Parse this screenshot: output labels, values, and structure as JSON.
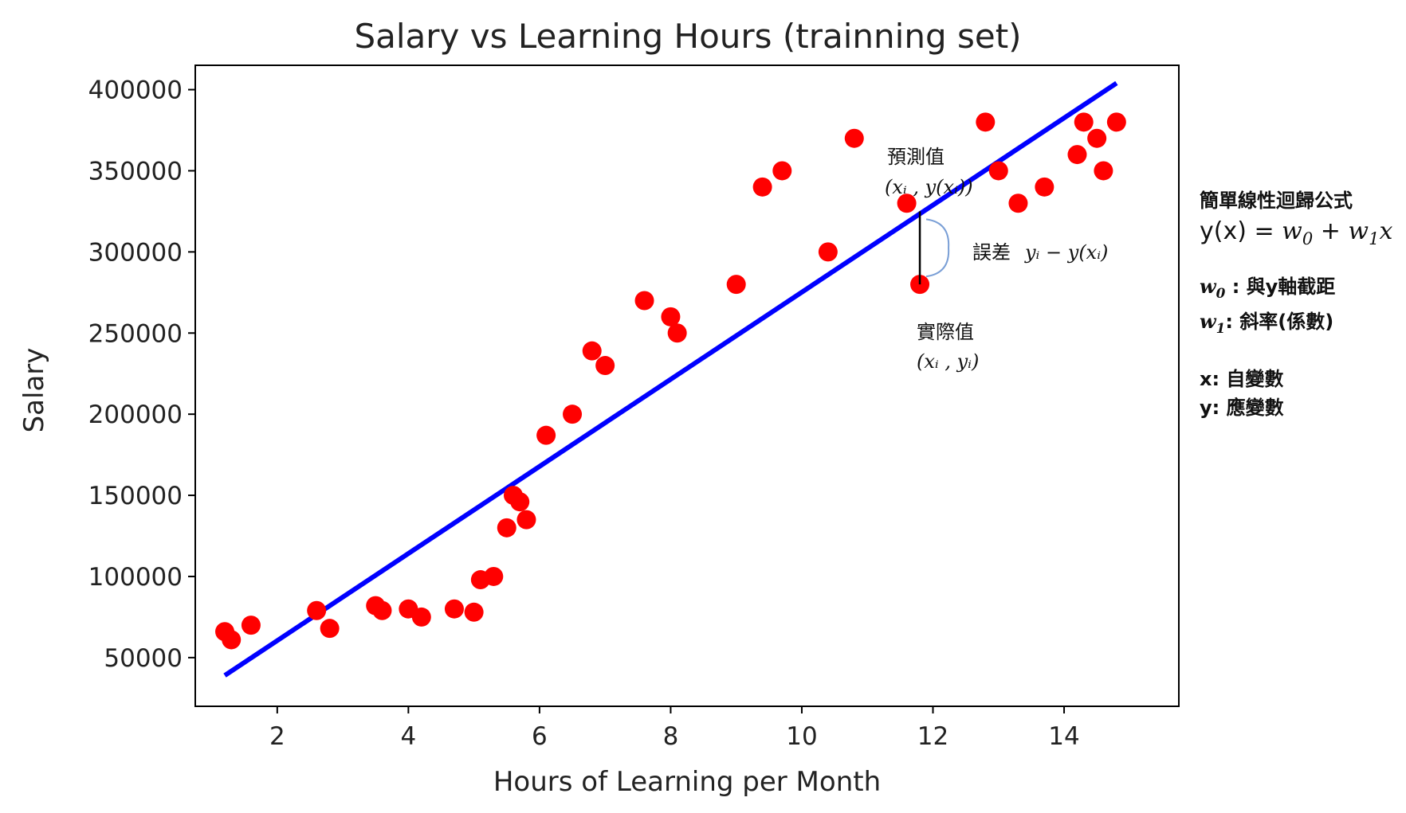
{
  "chart_data": {
    "type": "scatter",
    "title": "Salary vs Learning Hours (trainning set)",
    "xlabel": "Hours of Learning per Month",
    "ylabel": "Salary",
    "xlim": [
      0.75,
      15.75
    ],
    "ylim": [
      20000,
      415000
    ],
    "xticks": [
      2,
      4,
      6,
      8,
      10,
      12,
      14
    ],
    "yticks": [
      50000,
      100000,
      150000,
      200000,
      250000,
      300000,
      350000,
      400000
    ],
    "grid": false,
    "points": [
      {
        "x": 1.2,
        "y": 66000
      },
      {
        "x": 1.3,
        "y": 61000
      },
      {
        "x": 1.6,
        "y": 70000
      },
      {
        "x": 2.6,
        "y": 79000
      },
      {
        "x": 2.8,
        "y": 68000
      },
      {
        "x": 3.5,
        "y": 82000
      },
      {
        "x": 3.6,
        "y": 79000
      },
      {
        "x": 4.0,
        "y": 80000
      },
      {
        "x": 4.2,
        "y": 75000
      },
      {
        "x": 4.7,
        "y": 80000
      },
      {
        "x": 5.0,
        "y": 78000
      },
      {
        "x": 5.1,
        "y": 98000
      },
      {
        "x": 5.3,
        "y": 100000
      },
      {
        "x": 5.5,
        "y": 130000
      },
      {
        "x": 5.6,
        "y": 150000
      },
      {
        "x": 5.7,
        "y": 146000
      },
      {
        "x": 5.8,
        "y": 135000
      },
      {
        "x": 6.1,
        "y": 187000
      },
      {
        "x": 6.5,
        "y": 200000
      },
      {
        "x": 6.8,
        "y": 239000
      },
      {
        "x": 7.0,
        "y": 230000
      },
      {
        "x": 7.6,
        "y": 270000
      },
      {
        "x": 8.0,
        "y": 260000
      },
      {
        "x": 8.1,
        "y": 250000
      },
      {
        "x": 9.0,
        "y": 280000
      },
      {
        "x": 9.4,
        "y": 340000
      },
      {
        "x": 9.7,
        "y": 350000
      },
      {
        "x": 10.4,
        "y": 300000
      },
      {
        "x": 10.8,
        "y": 370000
      },
      {
        "x": 11.6,
        "y": 330000
      },
      {
        "x": 11.8,
        "y": 280000
      },
      {
        "x": 12.8,
        "y": 380000
      },
      {
        "x": 13.0,
        "y": 350000
      },
      {
        "x": 13.3,
        "y": 330000
      },
      {
        "x": 13.7,
        "y": 340000
      },
      {
        "x": 14.2,
        "y": 360000
      },
      {
        "x": 14.3,
        "y": 380000
      },
      {
        "x": 14.5,
        "y": 370000
      },
      {
        "x": 14.6,
        "y": 350000
      },
      {
        "x": 14.8,
        "y": 380000
      }
    ],
    "regression_line": {
      "x": [
        1.2,
        14.8
      ],
      "y": [
        39000,
        404000
      ]
    },
    "colors": {
      "points": "#ff0000",
      "line": "#0000ff",
      "error_bar": "#000000",
      "brace": "#7a9fd6"
    },
    "annotations": {
      "predicted_label": "預測值",
      "predicted_coord": "(𝑥ᵢ , y(𝑥ᵢ))",
      "actual_label": "實際值",
      "actual_coord": "(𝑥ᵢ , 𝑦ᵢ)",
      "error_label": "誤差",
      "error_expr": "𝑦ᵢ − y(𝑥ᵢ)",
      "error_x": 11.8,
      "error_y_top": 325000,
      "error_y_bottom": 280000
    }
  },
  "side_panel": {
    "title": "簡單線性迴歸公式",
    "equation_prefix": "y(x) = ",
    "equation_w0": "w",
    "equation_w0_sub": "0",
    "equation_plus": " + ",
    "equation_w1": "w",
    "equation_w1_sub": "1",
    "equation_x": "x",
    "w0_symbol": "w",
    "w0_sub": "0",
    "w0_def": " : 與y軸截距",
    "w1_symbol": "w",
    "w1_sub": "1",
    "w1_def": ": 斜率(係數)",
    "x_def": "x: 自變數",
    "y_def": "y: 應變數"
  }
}
